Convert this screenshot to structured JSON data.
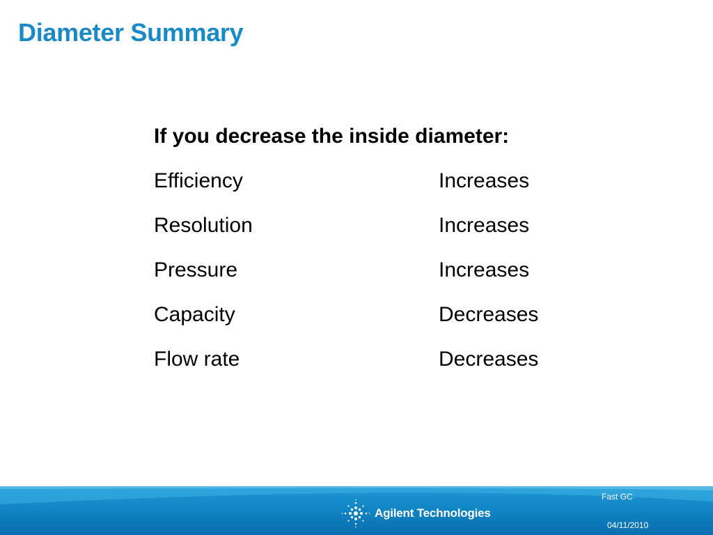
{
  "slide": {
    "title": "Diameter Summary",
    "heading": "If you decrease the inside diameter:",
    "rows": [
      {
        "property": "Efficiency",
        "effect": "Increases"
      },
      {
        "property": "Resolution",
        "effect": "Increases"
      },
      {
        "property": "Pressure",
        "effect": "Increases"
      },
      {
        "property": "Capacity",
        "effect": "Decreases"
      },
      {
        "property": "Flow rate",
        "effect": "Decreases"
      }
    ]
  },
  "footer": {
    "label": "Fast GC",
    "date": "04/11/2010",
    "logo_text": "Agilent Technologies",
    "logo_icon": "agilent-spark-icon",
    "background_color": "#1a8ac7"
  },
  "colors": {
    "title": "#1a8ac7",
    "body_text": "#000000"
  }
}
